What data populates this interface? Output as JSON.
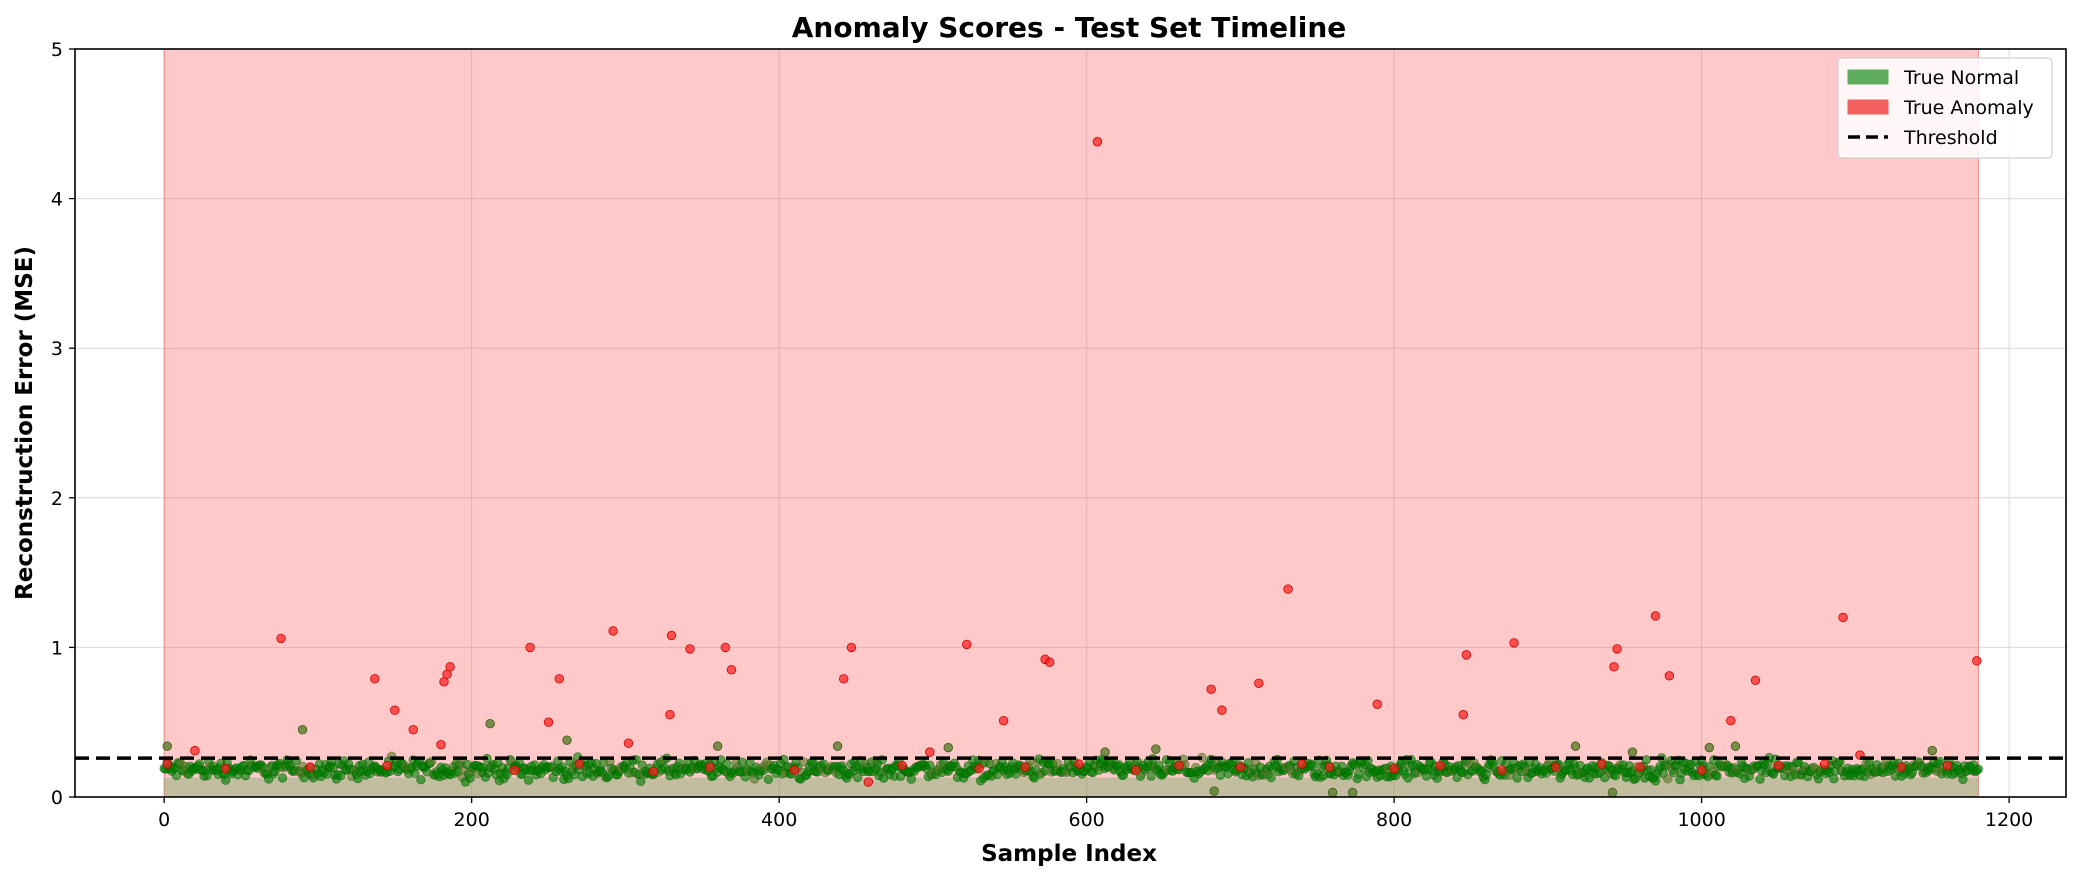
{
  "chart_data": {
    "type": "scatter",
    "title": "Anomaly Scores - Test Set Timeline",
    "xlabel": "Sample Index",
    "ylabel": "Reconstruction Error (MSE)",
    "xlim": [
      -58,
      1237
    ],
    "ylim": [
      0,
      5
    ],
    "xticks": [
      0,
      200,
      400,
      600,
      800,
      1000,
      1200
    ],
    "yticks": [
      0,
      1,
      2,
      3,
      4,
      5
    ],
    "grid": true,
    "legend_position": "top-right",
    "threshold": 0.26,
    "shaded_regions": [
      {
        "series": "True Anomaly",
        "x": [
          0,
          1180
        ],
        "y": [
          0,
          5
        ]
      },
      {
        "series": "True Normal",
        "x": [
          0,
          1180
        ],
        "y": [
          0,
          0.13
        ]
      }
    ],
    "legend": [
      {
        "label": "True Normal",
        "kind": "patch",
        "color": "#5cac5c"
      },
      {
        "label": "True Anomaly",
        "kind": "patch",
        "color": "#f26060"
      },
      {
        "label": "Threshold",
        "kind": "dashed-line",
        "color": "#000000"
      }
    ],
    "series": [
      {
        "name": "True Anomaly",
        "color": "#ff2020",
        "points": [
          [
            20,
            0.31
          ],
          [
            76,
            1.06
          ],
          [
            137,
            0.79
          ],
          [
            150,
            0.58
          ],
          [
            162,
            0.45
          ],
          [
            180,
            0.35
          ],
          [
            182,
            0.77
          ],
          [
            184,
            0.82
          ],
          [
            186,
            0.87
          ],
          [
            238,
            1.0
          ],
          [
            250,
            0.5
          ],
          [
            257,
            0.79
          ],
          [
            292,
            1.11
          ],
          [
            302,
            0.36
          ],
          [
            329,
            0.55
          ],
          [
            330,
            1.08
          ],
          [
            342,
            0.99
          ],
          [
            365,
            1.0
          ],
          [
            369,
            0.85
          ],
          [
            442,
            0.79
          ],
          [
            447,
            1.0
          ],
          [
            522,
            1.02
          ],
          [
            546,
            0.51
          ],
          [
            573,
            0.92
          ],
          [
            576,
            0.9
          ],
          [
            607,
            4.38
          ],
          [
            681,
            0.72
          ],
          [
            688,
            0.58
          ],
          [
            712,
            0.76
          ],
          [
            731,
            1.39
          ],
          [
            789,
            0.62
          ],
          [
            845,
            0.55
          ],
          [
            847,
            0.95
          ],
          [
            878,
            1.03
          ],
          [
            943,
            0.87
          ],
          [
            945,
            0.99
          ],
          [
            970,
            1.21
          ],
          [
            979,
            0.81
          ],
          [
            1019,
            0.51
          ],
          [
            1035,
            0.78
          ],
          [
            1092,
            1.2
          ],
          [
            1179,
            0.91
          ],
          [
            2,
            0.22
          ],
          [
            40,
            0.19
          ],
          [
            95,
            0.2
          ],
          [
            145,
            0.21
          ],
          [
            228,
            0.18
          ],
          [
            270,
            0.22
          ],
          [
            318,
            0.17
          ],
          [
            355,
            0.2
          ],
          [
            410,
            0.18
          ],
          [
            458,
            0.1
          ],
          [
            480,
            0.21
          ],
          [
            498,
            0.3
          ],
          [
            530,
            0.19
          ],
          [
            560,
            0.2
          ],
          [
            595,
            0.22
          ],
          [
            632,
            0.18
          ],
          [
            660,
            0.21
          ],
          [
            700,
            0.2
          ],
          [
            740,
            0.22
          ],
          [
            758,
            0.2
          ],
          [
            800,
            0.19
          ],
          [
            830,
            0.21
          ],
          [
            870,
            0.18
          ],
          [
            905,
            0.2
          ],
          [
            935,
            0.22
          ],
          [
            960,
            0.2
          ],
          [
            1000,
            0.18
          ],
          [
            1050,
            0.21
          ],
          [
            1080,
            0.22
          ],
          [
            1103,
            0.28
          ],
          [
            1130,
            0.2
          ],
          [
            1160,
            0.21
          ]
        ]
      },
      {
        "name": "True Normal",
        "color": "#008000",
        "highlight_points": [
          [
            2,
            0.34
          ],
          [
            90,
            0.45
          ],
          [
            212,
            0.49
          ],
          [
            262,
            0.38
          ],
          [
            360,
            0.34
          ],
          [
            438,
            0.34
          ],
          [
            510,
            0.33
          ],
          [
            612,
            0.3
          ],
          [
            645,
            0.32
          ],
          [
            683,
            0.04
          ],
          [
            760,
            0.03
          ],
          [
            773,
            0.03
          ],
          [
            918,
            0.34
          ],
          [
            942,
            0.03
          ],
          [
            955,
            0.3
          ],
          [
            1005,
            0.33
          ],
          [
            1022,
            0.34
          ],
          [
            1150,
            0.31
          ]
        ],
        "count": 1181,
        "x_range": [
          0,
          1180
        ],
        "y_typical_range": [
          0.09,
          0.28
        ],
        "y_median": 0.16
      }
    ]
  }
}
